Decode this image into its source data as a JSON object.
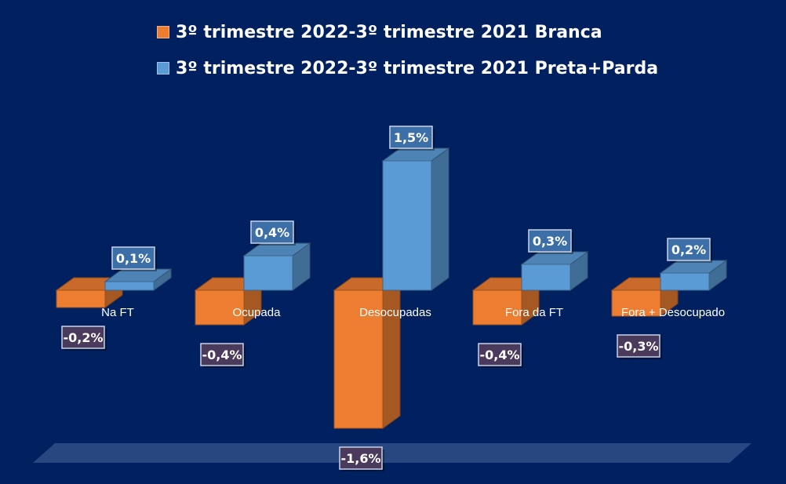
{
  "chart_data": {
    "type": "bar",
    "categories": [
      "Na FT",
      "Ocupada",
      "Desocupadas",
      "Fora da FT",
      "Fora + Desocupado"
    ],
    "series": [
      {
        "name": "3º trimestre 2022-3º trimestre 2021 Branca",
        "color": "#ED7D31",
        "values": [
          -0.2,
          -0.4,
          -1.6,
          -0.4,
          -0.3
        ],
        "labels": [
          "-0,2%",
          "-0,4%",
          "-1,6%",
          "-0,4%",
          "-0,3%"
        ]
      },
      {
        "name": "3º trimestre 2022-3º trimestre 2021 Preta+Parda",
        "color": "#5B9BD5",
        "values": [
          0.1,
          0.4,
          1.5,
          0.3,
          0.2
        ],
        "labels": [
          "0,1%",
          "0,4%",
          "1,5%",
          "0,3%",
          "0,2%"
        ]
      }
    ],
    "ylim": [
      -1.6,
      1.5
    ],
    "style": "3d-clustered-column",
    "legend_position": "top",
    "grid": false
  }
}
